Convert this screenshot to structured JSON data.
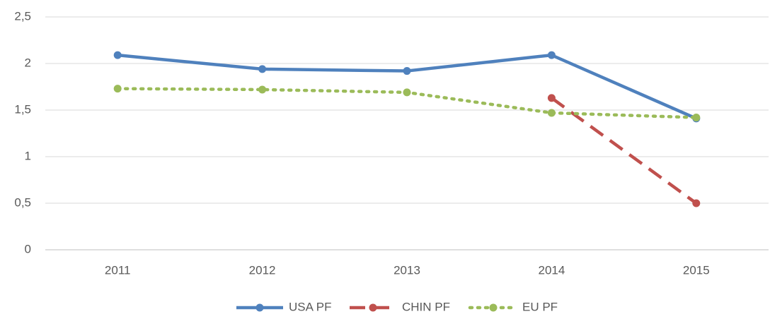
{
  "chart_data": {
    "type": "line",
    "categories": [
      "2011",
      "2012",
      "2013",
      "2014",
      "2015"
    ],
    "series": [
      {
        "name": "USA PF",
        "color": "#4f81bd",
        "style": "solid",
        "values": [
          2.09,
          1.94,
          1.92,
          2.09,
          1.41
        ]
      },
      {
        "name": "CHIN PF",
        "color": "#c0504d",
        "style": "dashed",
        "values": [
          null,
          null,
          null,
          1.63,
          0.5
        ]
      },
      {
        "name": "EU PF",
        "color": "#9bbb59",
        "style": "dotted",
        "values": [
          1.73,
          1.72,
          1.69,
          1.47,
          1.42
        ]
      }
    ],
    "ylim": [
      0,
      2.5
    ],
    "yticks": [
      0,
      {
        "value": 0.5,
        "label": "0,5"
      },
      1,
      {
        "value": 1.5,
        "label": "1,5"
      },
      2,
      {
        "value": 2.5,
        "label": "2,5"
      }
    ],
    "grid": true,
    "legend": "bottom"
  }
}
